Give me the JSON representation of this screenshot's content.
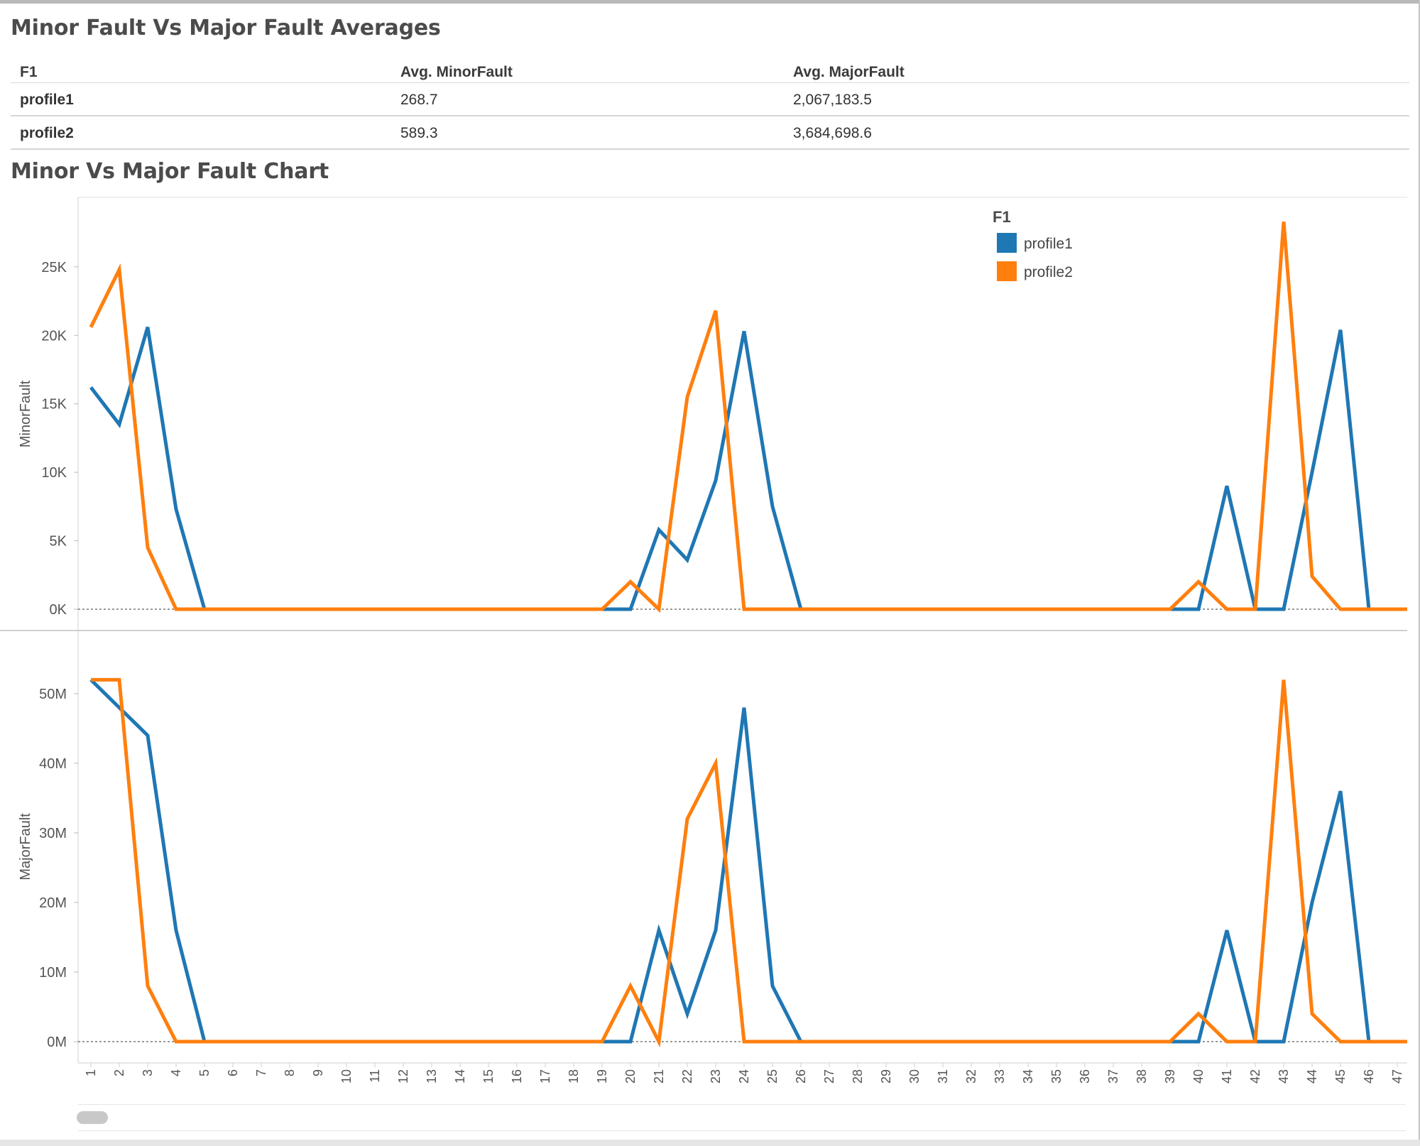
{
  "averages_section": {
    "title": "Minor Fault Vs Major Fault Averages",
    "columns": [
      "F1",
      "Avg. MinorFault",
      "Avg. MajorFault"
    ],
    "rows": [
      {
        "name": "profile1",
        "minor": "268.7",
        "major": "2,067,183.5"
      },
      {
        "name": "profile2",
        "minor": "589.3",
        "major": "3,684,698.6"
      }
    ]
  },
  "chart_section": {
    "title": "Minor Vs Major Fault Chart"
  },
  "chart_data": {
    "type": "line",
    "categories": [
      "1",
      "2",
      "3",
      "4",
      "5",
      "6",
      "7",
      "8",
      "9",
      "10",
      "11",
      "12",
      "13",
      "14",
      "15",
      "16",
      "17",
      "18",
      "19",
      "20",
      "21",
      "22",
      "23",
      "24",
      "25",
      "26",
      "27",
      "28",
      "29",
      "30",
      "31",
      "32",
      "33",
      "34",
      "35",
      "36",
      "37",
      "38",
      "39",
      "40",
      "41",
      "42",
      "43",
      "44",
      "45",
      "46",
      "47"
    ],
    "legend": {
      "title": "F1",
      "position": "top-right",
      "entries": [
        "profile1",
        "profile2"
      ]
    },
    "colors": {
      "profile1": "#1f77b4",
      "profile2": "#ff7f0e"
    },
    "panels": [
      {
        "ylabel": "MinorFault",
        "ylim": [
          0,
          28000
        ],
        "yticks": [
          0,
          5000,
          10000,
          15000,
          20000,
          25000
        ],
        "ytick_labels": [
          "0K",
          "5K",
          "10K",
          "15K",
          "20K",
          "25K"
        ],
        "series": [
          {
            "name": "profile1",
            "values": [
              16200,
              13500,
              20600,
              7300,
              0,
              0,
              0,
              0,
              0,
              0,
              0,
              0,
              0,
              0,
              0,
              0,
              0,
              0,
              0,
              0,
              5800,
              3600,
              9400,
              20300,
              7500,
              0,
              0,
              0,
              0,
              0,
              0,
              0,
              0,
              0,
              0,
              0,
              0,
              0,
              0,
              0,
              9000,
              0,
              0,
              10000,
              20400,
              0,
              0
            ]
          },
          {
            "name": "profile2",
            "values": [
              20600,
              24800,
              4500,
              0,
              0,
              0,
              0,
              0,
              0,
              0,
              0,
              0,
              0,
              0,
              0,
              0,
              0,
              0,
              0,
              2000,
              0,
              15500,
              21800,
              0,
              0,
              0,
              0,
              0,
              0,
              0,
              0,
              0,
              0,
              0,
              0,
              0,
              0,
              0,
              0,
              2000,
              0,
              0,
              28300,
              2400,
              0,
              0,
              0
            ]
          }
        ]
      },
      {
        "ylabel": "MajorFault",
        "ylim": [
          0,
          55000000
        ],
        "yticks": [
          0,
          10000000,
          20000000,
          30000000,
          40000000,
          50000000
        ],
        "ytick_labels": [
          "0M",
          "10M",
          "20M",
          "30M",
          "40M",
          "50M"
        ],
        "series": [
          {
            "name": "profile1",
            "values": [
              52000000,
              48000000,
              44000000,
              16000000,
              0,
              0,
              0,
              0,
              0,
              0,
              0,
              0,
              0,
              0,
              0,
              0,
              0,
              0,
              0,
              0,
              16000000,
              4000000,
              16000000,
              48000000,
              8000000,
              0,
              0,
              0,
              0,
              0,
              0,
              0,
              0,
              0,
              0,
              0,
              0,
              0,
              0,
              0,
              16000000,
              0,
              0,
              20000000,
              36000000,
              0,
              0
            ]
          },
          {
            "name": "profile2",
            "values": [
              52000000,
              52000000,
              8000000,
              0,
              0,
              0,
              0,
              0,
              0,
              0,
              0,
              0,
              0,
              0,
              0,
              0,
              0,
              0,
              0,
              8000000,
              0,
              32000000,
              40000000,
              0,
              0,
              0,
              0,
              0,
              0,
              0,
              0,
              0,
              0,
              0,
              0,
              0,
              0,
              0,
              0,
              4000000,
              0,
              0,
              52000000,
              4000000,
              0,
              0,
              0
            ]
          }
        ]
      }
    ]
  }
}
